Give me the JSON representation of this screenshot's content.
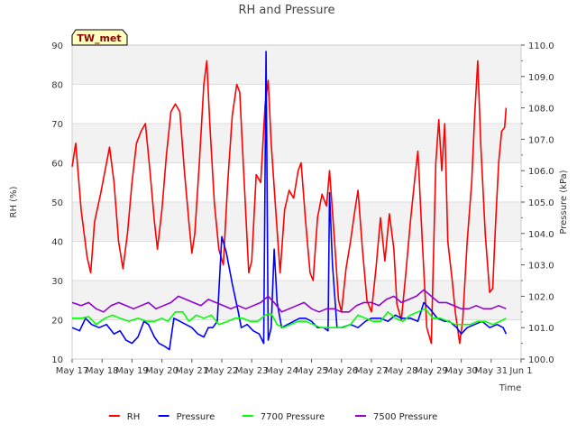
{
  "chart_data": {
    "type": "line",
    "title": "RH and Pressure",
    "badge": "TW_met",
    "xlabel": "Time",
    "ylabel_left": "RH (%)",
    "ylabel_right": "Pressure (kPa)",
    "ylim_left": [
      10,
      90
    ],
    "ylim_right": [
      100.0,
      110.0
    ],
    "xlim": [
      0,
      15
    ],
    "x_ticks": [
      "May 17",
      "May 18",
      "May 19",
      "May 20",
      "May 21",
      "May 22",
      "May 23",
      "May 24",
      "May 25",
      "May 26",
      "May 27",
      "May 28",
      "May 29",
      "May 30",
      "May 31",
      "Jun 1"
    ],
    "y_ticks_left": [
      10,
      20,
      30,
      40,
      50,
      60,
      70,
      80,
      90
    ],
    "y_ticks_right": [
      "100.0",
      "101.0",
      "102.0",
      "103.0",
      "104.0",
      "105.0",
      "106.0",
      "107.0",
      "108.0",
      "109.0",
      "110.0"
    ],
    "grid": true,
    "legend_position": "bottom",
    "series": [
      {
        "name": "RH",
        "color": "#ff0000",
        "axis": "left",
        "points": [
          [
            0.0,
            59
          ],
          [
            0.12,
            65
          ],
          [
            0.3,
            48
          ],
          [
            0.5,
            36
          ],
          [
            0.62,
            32
          ],
          [
            0.75,
            45
          ],
          [
            0.95,
            52
          ],
          [
            1.1,
            58
          ],
          [
            1.25,
            64
          ],
          [
            1.4,
            55
          ],
          [
            1.55,
            40
          ],
          [
            1.7,
            33
          ],
          [
            1.85,
            42
          ],
          [
            2.0,
            55
          ],
          [
            2.15,
            65
          ],
          [
            2.3,
            68
          ],
          [
            2.45,
            70
          ],
          [
            2.6,
            58
          ],
          [
            2.75,
            45
          ],
          [
            2.85,
            38
          ],
          [
            3.0,
            48
          ],
          [
            3.15,
            62
          ],
          [
            3.3,
            73
          ],
          [
            3.45,
            75
          ],
          [
            3.6,
            73
          ],
          [
            3.75,
            58
          ],
          [
            3.9,
            45
          ],
          [
            4.0,
            37
          ],
          [
            4.1,
            42
          ],
          [
            4.25,
            60
          ],
          [
            4.4,
            80
          ],
          [
            4.5,
            86
          ],
          [
            4.6,
            70
          ],
          [
            4.75,
            50
          ],
          [
            4.9,
            38
          ],
          [
            5.05,
            34
          ],
          [
            5.2,
            55
          ],
          [
            5.35,
            72
          ],
          [
            5.5,
            80
          ],
          [
            5.6,
            78
          ],
          [
            5.75,
            55
          ],
          [
            5.9,
            32
          ],
          [
            6.0,
            35
          ],
          [
            6.15,
            57
          ],
          [
            6.3,
            55
          ],
          [
            6.45,
            75
          ],
          [
            6.55,
            81
          ],
          [
            6.65,
            65
          ],
          [
            6.8,
            48
          ],
          [
            6.95,
            32
          ],
          [
            7.1,
            48
          ],
          [
            7.25,
            53
          ],
          [
            7.4,
            51
          ],
          [
            7.55,
            58
          ],
          [
            7.65,
            60
          ],
          [
            7.8,
            45
          ],
          [
            7.95,
            32
          ],
          [
            8.05,
            30
          ],
          [
            8.2,
            46
          ],
          [
            8.35,
            52
          ],
          [
            8.5,
            49
          ],
          [
            8.6,
            58
          ],
          [
            8.75,
            42
          ],
          [
            8.9,
            25
          ],
          [
            9.0,
            22
          ],
          [
            9.15,
            33
          ],
          [
            9.3,
            40
          ],
          [
            9.45,
            48
          ],
          [
            9.55,
            53
          ],
          [
            9.7,
            38
          ],
          [
            9.85,
            25
          ],
          [
            10.0,
            22
          ],
          [
            10.15,
            33
          ],
          [
            10.3,
            46
          ],
          [
            10.45,
            35
          ],
          [
            10.6,
            47
          ],
          [
            10.75,
            38
          ],
          [
            10.85,
            24
          ],
          [
            11.0,
            20
          ],
          [
            11.15,
            32
          ],
          [
            11.3,
            45
          ],
          [
            11.45,
            56
          ],
          [
            11.55,
            63
          ],
          [
            11.7,
            40
          ],
          [
            11.85,
            18
          ],
          [
            12.0,
            14
          ],
          [
            12.15,
            60
          ],
          [
            12.25,
            71
          ],
          [
            12.35,
            58
          ],
          [
            12.45,
            70
          ],
          [
            12.55,
            40
          ],
          [
            12.7,
            30
          ],
          [
            12.8,
            22
          ],
          [
            12.95,
            14
          ],
          [
            13.05,
            20
          ],
          [
            13.2,
            40
          ],
          [
            13.35,
            55
          ],
          [
            13.45,
            72
          ],
          [
            13.55,
            86
          ],
          [
            13.65,
            65
          ],
          [
            13.8,
            42
          ],
          [
            13.95,
            27
          ],
          [
            14.05,
            28
          ],
          [
            14.15,
            45
          ],
          [
            14.25,
            60
          ],
          [
            14.35,
            68
          ],
          [
            14.45,
            69
          ],
          [
            14.5,
            74
          ]
        ]
      },
      {
        "name": "Pressure",
        "color": "#0000ff",
        "axis": "right",
        "points": [
          [
            0.0,
            101.0
          ],
          [
            0.25,
            100.9
          ],
          [
            0.45,
            101.3
          ],
          [
            0.65,
            101.1
          ],
          [
            0.9,
            101.0
          ],
          [
            1.15,
            101.1
          ],
          [
            1.4,
            100.8
          ],
          [
            1.6,
            100.9
          ],
          [
            1.8,
            100.6
          ],
          [
            2.0,
            100.5
          ],
          [
            2.2,
            100.7
          ],
          [
            2.4,
            101.2
          ],
          [
            2.55,
            101.1
          ],
          [
            2.75,
            100.7
          ],
          [
            2.9,
            100.5
          ],
          [
            3.1,
            100.4
          ],
          [
            3.25,
            100.3
          ],
          [
            3.4,
            101.3
          ],
          [
            3.6,
            101.2
          ],
          [
            3.8,
            101.1
          ],
          [
            4.0,
            101.0
          ],
          [
            4.2,
            100.8
          ],
          [
            4.4,
            100.7
          ],
          [
            4.55,
            101.0
          ],
          [
            4.7,
            101.0
          ],
          [
            4.85,
            101.2
          ],
          [
            5.0,
            103.9
          ],
          [
            5.15,
            103.4
          ],
          [
            5.35,
            102.4
          ],
          [
            5.55,
            101.5
          ],
          [
            5.65,
            101.0
          ],
          [
            5.85,
            101.1
          ],
          [
            6.05,
            100.9
          ],
          [
            6.25,
            100.8
          ],
          [
            6.4,
            100.5
          ],
          [
            6.48,
            109.8
          ],
          [
            6.55,
            100.6
          ],
          [
            6.65,
            101.0
          ],
          [
            6.75,
            103.5
          ],
          [
            6.85,
            101.8
          ],
          [
            7.0,
            101.0
          ],
          [
            7.2,
            101.1
          ],
          [
            7.4,
            101.2
          ],
          [
            7.6,
            101.3
          ],
          [
            7.8,
            101.3
          ],
          [
            8.0,
            101.2
          ],
          [
            8.2,
            101.0
          ],
          [
            8.4,
            101.0
          ],
          [
            8.55,
            100.9
          ],
          [
            8.6,
            105.3
          ],
          [
            8.7,
            103.0
          ],
          [
            8.85,
            101.0
          ],
          [
            9.0,
            101.0
          ],
          [
            9.3,
            101.1
          ],
          [
            9.55,
            101.0
          ],
          [
            9.8,
            101.2
          ],
          [
            10.0,
            101.3
          ],
          [
            10.3,
            101.3
          ],
          [
            10.55,
            101.2
          ],
          [
            10.8,
            101.4
          ],
          [
            11.0,
            101.3
          ],
          [
            11.3,
            101.3
          ],
          [
            11.55,
            101.2
          ],
          [
            11.75,
            101.8
          ],
          [
            11.95,
            101.6
          ],
          [
            12.2,
            101.3
          ],
          [
            12.45,
            101.2
          ],
          [
            12.6,
            101.2
          ],
          [
            12.85,
            101.0
          ],
          [
            13.0,
            100.8
          ],
          [
            13.2,
            101.0
          ],
          [
            13.45,
            101.1
          ],
          [
            13.7,
            101.2
          ],
          [
            13.95,
            101.0
          ],
          [
            14.2,
            101.1
          ],
          [
            14.4,
            101.0
          ],
          [
            14.5,
            100.8
          ]
        ]
      },
      {
        "name": "7700 Pressure",
        "color": "#00ff00",
        "axis": "right",
        "points": [
          [
            0.0,
            101.3
          ],
          [
            0.3,
            101.3
          ],
          [
            0.55,
            101.35
          ],
          [
            0.8,
            101.1
          ],
          [
            1.1,
            101.3
          ],
          [
            1.35,
            101.4
          ],
          [
            1.6,
            101.3
          ],
          [
            1.9,
            101.2
          ],
          [
            2.2,
            101.3
          ],
          [
            2.5,
            101.2
          ],
          [
            2.75,
            101.2
          ],
          [
            3.0,
            101.3
          ],
          [
            3.2,
            101.2
          ],
          [
            3.45,
            101.5
          ],
          [
            3.7,
            101.5
          ],
          [
            3.9,
            101.2
          ],
          [
            4.15,
            101.4
          ],
          [
            4.4,
            101.3
          ],
          [
            4.65,
            101.4
          ],
          [
            4.9,
            101.1
          ],
          [
            5.2,
            101.2
          ],
          [
            5.45,
            101.3
          ],
          [
            5.7,
            101.3
          ],
          [
            5.95,
            101.2
          ],
          [
            6.2,
            101.2
          ],
          [
            6.45,
            101.4
          ],
          [
            6.65,
            101.45
          ],
          [
            6.85,
            101.1
          ],
          [
            7.05,
            101.0
          ],
          [
            7.3,
            101.1
          ],
          [
            7.55,
            101.2
          ],
          [
            7.8,
            101.2
          ],
          [
            8.05,
            101.1
          ],
          [
            8.3,
            101.0
          ],
          [
            8.55,
            101.0
          ],
          [
            8.8,
            101.0
          ],
          [
            9.05,
            101.0
          ],
          [
            9.3,
            101.1
          ],
          [
            9.55,
            101.4
          ],
          [
            9.8,
            101.3
          ],
          [
            10.05,
            101.2
          ],
          [
            10.3,
            101.2
          ],
          [
            10.55,
            101.5
          ],
          [
            10.8,
            101.3
          ],
          [
            11.05,
            101.2
          ],
          [
            11.3,
            101.4
          ],
          [
            11.55,
            101.5
          ],
          [
            11.8,
            101.6
          ],
          [
            12.05,
            101.3
          ],
          [
            12.3,
            101.3
          ],
          [
            12.55,
            101.2
          ],
          [
            12.8,
            101.1
          ],
          [
            13.05,
            101.1
          ],
          [
            13.3,
            101.1
          ],
          [
            13.55,
            101.2
          ],
          [
            13.8,
            101.2
          ],
          [
            14.05,
            101.1
          ],
          [
            14.3,
            101.2
          ],
          [
            14.5,
            101.3
          ]
        ]
      },
      {
        "name": "7500 Pressure",
        "color": "#9400d3",
        "axis": "right",
        "points": [
          [
            0.0,
            101.8
          ],
          [
            0.3,
            101.7
          ],
          [
            0.55,
            101.8
          ],
          [
            0.8,
            101.6
          ],
          [
            1.05,
            101.5
          ],
          [
            1.3,
            101.7
          ],
          [
            1.55,
            101.8
          ],
          [
            1.8,
            101.7
          ],
          [
            2.05,
            101.6
          ],
          [
            2.3,
            101.7
          ],
          [
            2.55,
            101.8
          ],
          [
            2.8,
            101.6
          ],
          [
            3.05,
            101.7
          ],
          [
            3.3,
            101.8
          ],
          [
            3.55,
            102.0
          ],
          [
            3.8,
            101.9
          ],
          [
            4.05,
            101.8
          ],
          [
            4.3,
            101.7
          ],
          [
            4.55,
            101.9
          ],
          [
            4.8,
            101.8
          ],
          [
            5.05,
            101.7
          ],
          [
            5.3,
            101.6
          ],
          [
            5.55,
            101.7
          ],
          [
            5.8,
            101.6
          ],
          [
            6.05,
            101.7
          ],
          [
            6.3,
            101.8
          ],
          [
            6.55,
            102.0
          ],
          [
            6.75,
            101.8
          ],
          [
            7.0,
            101.5
          ],
          [
            7.25,
            101.6
          ],
          [
            7.5,
            101.7
          ],
          [
            7.75,
            101.8
          ],
          [
            8.0,
            101.6
          ],
          [
            8.25,
            101.5
          ],
          [
            8.5,
            101.6
          ],
          [
            8.75,
            101.6
          ],
          [
            9.0,
            101.5
          ],
          [
            9.25,
            101.5
          ],
          [
            9.5,
            101.7
          ],
          [
            9.75,
            101.8
          ],
          [
            10.0,
            101.8
          ],
          [
            10.25,
            101.7
          ],
          [
            10.5,
            101.9
          ],
          [
            10.75,
            102.0
          ],
          [
            11.0,
            101.8
          ],
          [
            11.25,
            101.9
          ],
          [
            11.5,
            102.0
          ],
          [
            11.75,
            102.2
          ],
          [
            12.0,
            102.0
          ],
          [
            12.25,
            101.8
          ],
          [
            12.5,
            101.8
          ],
          [
            12.75,
            101.7
          ],
          [
            13.0,
            101.6
          ],
          [
            13.25,
            101.6
          ],
          [
            13.5,
            101.7
          ],
          [
            13.75,
            101.6
          ],
          [
            14.0,
            101.6
          ],
          [
            14.25,
            101.7
          ],
          [
            14.5,
            101.6
          ]
        ]
      }
    ]
  }
}
